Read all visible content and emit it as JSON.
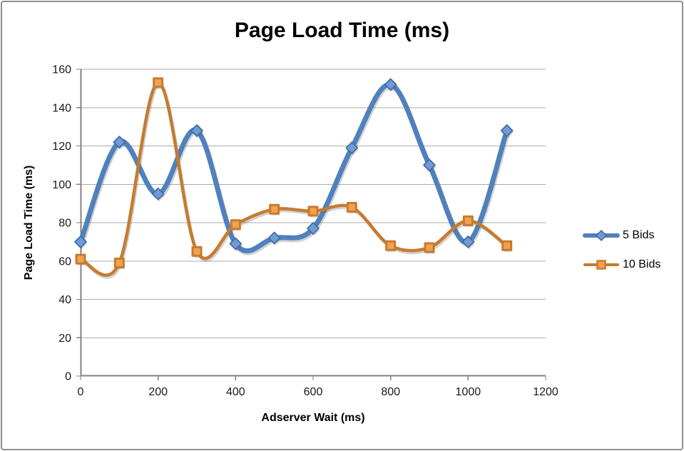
{
  "window": {
    "background": "#ffffff",
    "border_color": "#8f8f8f"
  },
  "chart_data": {
    "type": "line",
    "title": "Page Load Time (ms)",
    "xlabel": "Adserver Wait (ms)",
    "ylabel": "Page Load Time (ms)",
    "x": [
      0,
      100,
      200,
      300,
      400,
      500,
      600,
      700,
      800,
      900,
      1000,
      1100
    ],
    "series": [
      {
        "name": "5 Bids",
        "color": "#4F81BD",
        "marker": "diamond",
        "marker_fill": "#6F9BD6",
        "marker_stroke": "#3C6A9E",
        "line_width": 7,
        "values": [
          70,
          122,
          95,
          128,
          69,
          72,
          77,
          119,
          152,
          110,
          70,
          128
        ]
      },
      {
        "name": "10 Bids",
        "color": "#C77B2F",
        "marker": "square",
        "marker_fill": "#F2A24E",
        "marker_stroke": "#C77B2F",
        "line_width": 4.5,
        "values": [
          61,
          59,
          153,
          65,
          79,
          87,
          86,
          88,
          68,
          67,
          81,
          68
        ]
      }
    ],
    "xlim": [
      0,
      1200
    ],
    "ylim": [
      0,
      160
    ],
    "x_ticks": [
      0,
      200,
      400,
      600,
      800,
      1000,
      1200
    ],
    "y_ticks": [
      0,
      20,
      40,
      60,
      80,
      100,
      120,
      140,
      160
    ],
    "grid": true,
    "gridline_color": "#ABABAB",
    "axis_color": "#808080",
    "smooth": true,
    "legend_position": "right"
  }
}
